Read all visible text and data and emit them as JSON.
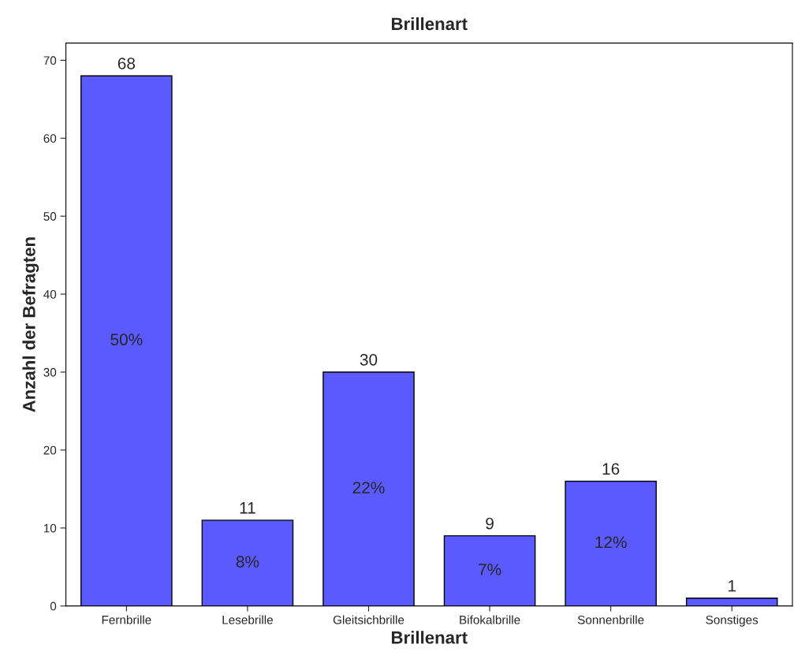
{
  "chart_data": {
    "type": "bar",
    "title": "Brillenart",
    "xlabel": "Brillenart",
    "ylabel": "Anzahl der Befragten",
    "categories": [
      "Fernbrille",
      "Lesebrille",
      "Gleitsichbrille",
      "Bifokalbrille",
      "Sonnenbrille",
      "Sonstiges"
    ],
    "values": [
      68,
      11,
      30,
      9,
      16,
      1
    ],
    "color": "#5a5aff",
    "ylim": [
      0,
      72.2
    ],
    "yticks": [
      0,
      10,
      20,
      30,
      40,
      50,
      60,
      70
    ],
    "grid": false,
    "data_labels": true,
    "annotations": [
      "50%",
      "8%",
      "22%",
      "7%",
      "12%"
    ]
  }
}
